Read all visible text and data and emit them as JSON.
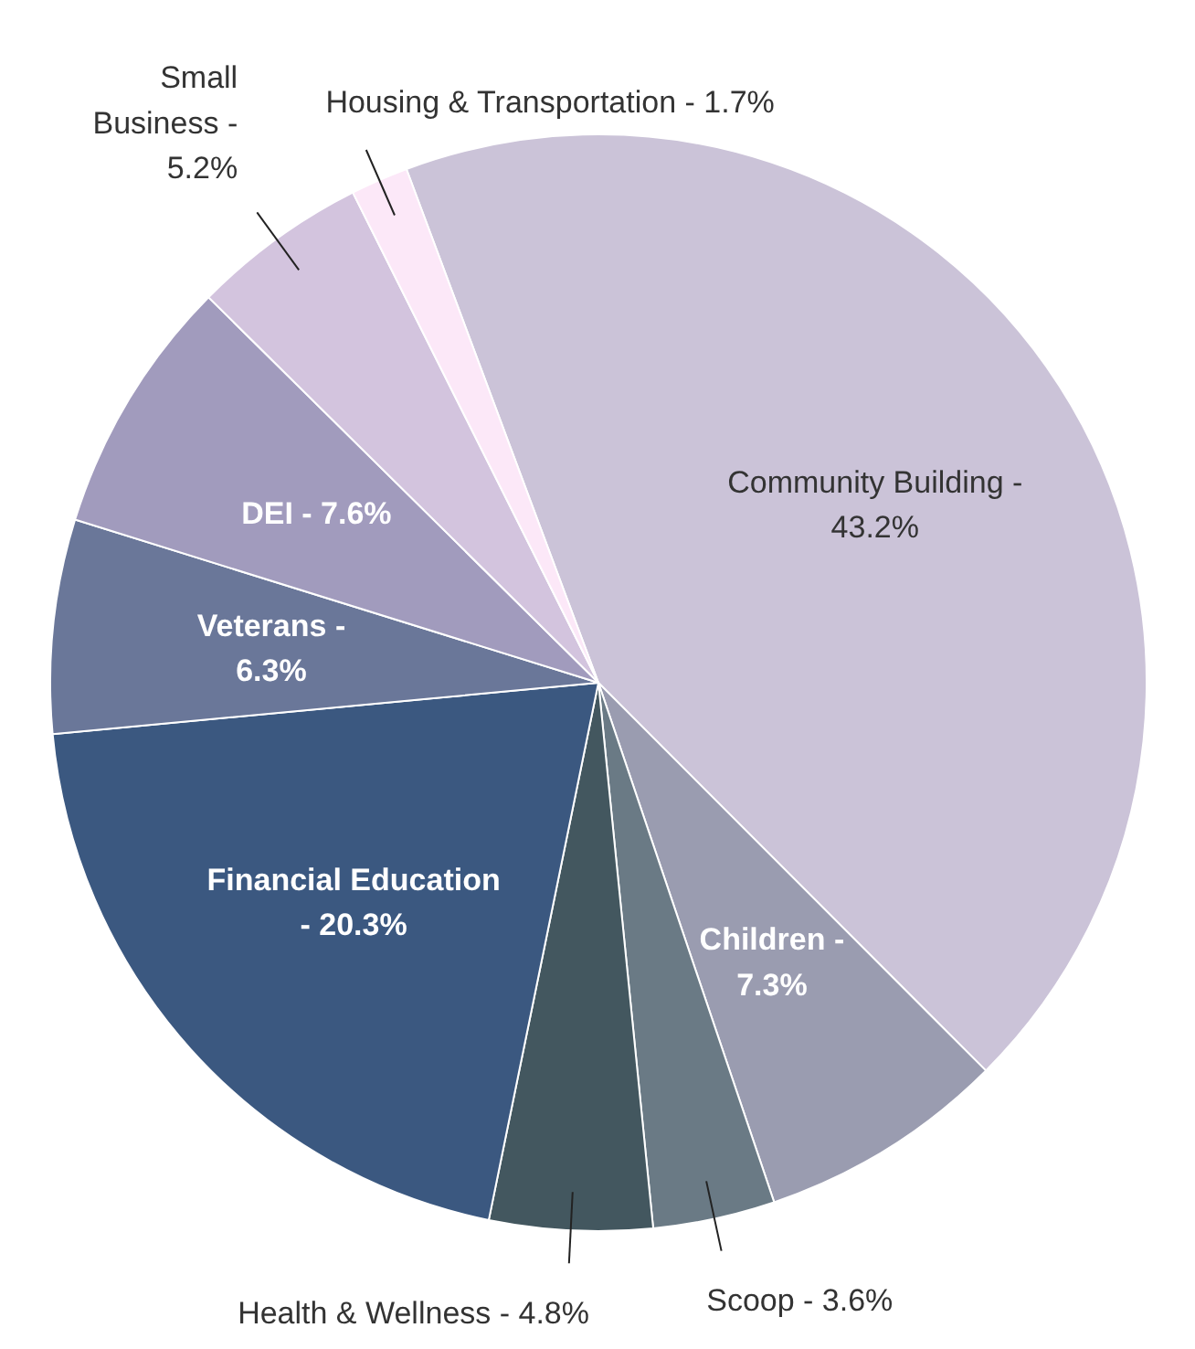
{
  "chart_data": {
    "type": "pie",
    "categories": [
      "Community Building -",
      "Children -",
      "Scoop -",
      "Health & Wellness -",
      "Financial Education -",
      "Veterans -",
      "DEI -",
      "Small Business -",
      "Housing & Transportation -"
    ],
    "values": [
      43.2,
      7.3,
      3.6,
      4.8,
      20.3,
      6.3,
      7.6,
      5.2,
      1.7
    ],
    "value_labels": [
      "43.2%",
      "7.3%",
      "3.6%",
      "4.8%",
      "20.3%",
      "6.3%",
      "7.6%",
      "5.2%",
      "1.7%"
    ],
    "colors": [
      "#cbc3d8",
      "#9a9cb0",
      "#6a7a85",
      "#43575f",
      "#3b5880",
      "#6a7799",
      "#a19bbd",
      "#d3c4de",
      "#fce8f8"
    ]
  }
}
